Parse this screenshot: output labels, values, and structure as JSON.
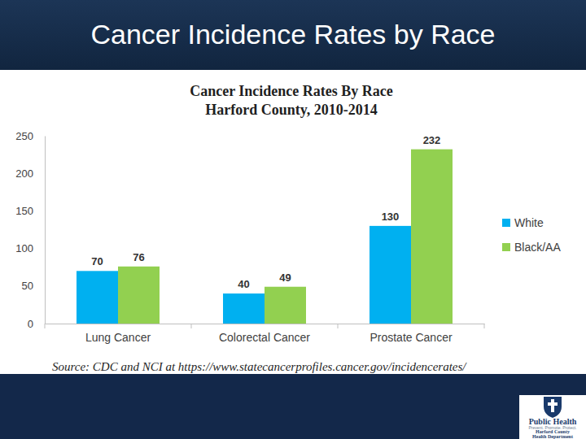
{
  "slide": {
    "title": "Cancer Incidence Rates by Race",
    "logo": [
      "Public Health",
      "Prevent. Promote. Protect.",
      "Harford County",
      "Health Department"
    ]
  },
  "chart_data": {
    "type": "bar",
    "title": "Cancer Incidence Rates By Race",
    "subtitle": "Harford County, 2010-2014",
    "source": "Source: CDC and NCI at https://www.statecancerprofiles.cancer.gov/incidencerates/",
    "categories": [
      "Lung Cancer",
      "Colorectal Cancer",
      "Prostate Cancer"
    ],
    "series": [
      {
        "name": "White",
        "color": "#00b0f0",
        "values": [
          70,
          40,
          130
        ]
      },
      {
        "name": "Black/AA",
        "color": "#92d050",
        "values": [
          76,
          49,
          232
        ]
      }
    ],
    "ylim": [
      0,
      250
    ],
    "yticks": [
      0,
      50,
      100,
      150,
      200,
      250
    ],
    "grid": false,
    "legend": "right",
    "data_labels": true
  }
}
